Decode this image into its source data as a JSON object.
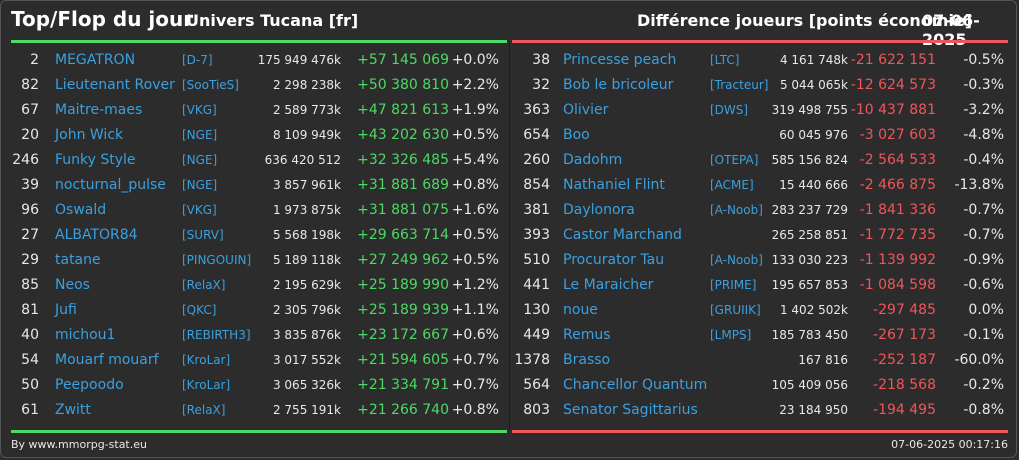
{
  "header": {
    "title": "Top/Flop du jour",
    "universe": "Univers Tucana [fr]",
    "metric": "Différence joueurs [points économie]",
    "date": "07-06-2025"
  },
  "colors": {
    "gain": "#4cd964",
    "loss": "#f0555a",
    "name": "#3aa0e0",
    "background": "#2c2c2c"
  },
  "top": [
    {
      "rank": "2",
      "name": "MEGATRON",
      "ally": "[D-7]",
      "points": "175 949 476k",
      "delta": "+57 145 069",
      "pct": "+0.0%"
    },
    {
      "rank": "82",
      "name": "Lieutenant Rover",
      "ally": "[SooTieS]",
      "points": "2 298 238k",
      "delta": "+50 380 810",
      "pct": "+2.2%"
    },
    {
      "rank": "67",
      "name": "Maitre-maes",
      "ally": "[VKG]",
      "points": "2 589 773k",
      "delta": "+47 821 613",
      "pct": "+1.9%"
    },
    {
      "rank": "20",
      "name": "John Wick",
      "ally": "[NGE]",
      "points": "8 109 949k",
      "delta": "+43 202 630",
      "pct": "+0.5%"
    },
    {
      "rank": "246",
      "name": "Funky Style",
      "ally": "[NGE]",
      "points": "636 420 512",
      "delta": "+32 326 485",
      "pct": "+5.4%"
    },
    {
      "rank": "39",
      "name": "nocturnal_pulse",
      "ally": "[NGE]",
      "points": "3 857 961k",
      "delta": "+31 881 689",
      "pct": "+0.8%"
    },
    {
      "rank": "96",
      "name": "Oswald",
      "ally": "[VKG]",
      "points": "1 973 875k",
      "delta": "+31 881 075",
      "pct": "+1.6%"
    },
    {
      "rank": "27",
      "name": "ALBATOR84",
      "ally": "[SURV]",
      "points": "5 568 198k",
      "delta": "+29 663 714",
      "pct": "+0.5%"
    },
    {
      "rank": "29",
      "name": "tatane",
      "ally": "[PINGOUIN]",
      "points": "5 189 118k",
      "delta": "+27 249 962",
      "pct": "+0.5%"
    },
    {
      "rank": "85",
      "name": "Neos",
      "ally": "[RelaX]",
      "points": "2 195 629k",
      "delta": "+25 189 990",
      "pct": "+1.2%"
    },
    {
      "rank": "81",
      "name": "Jufi",
      "ally": "[QKC]",
      "points": "2 305 796k",
      "delta": "+25 189 939",
      "pct": "+1.1%"
    },
    {
      "rank": "40",
      "name": "michou1",
      "ally": "[REBIRTH3]",
      "points": "3 835 876k",
      "delta": "+23 172 667",
      "pct": "+0.6%"
    },
    {
      "rank": "54",
      "name": "Mouarf mouarf",
      "ally": "[KroLar]",
      "points": "3 017 552k",
      "delta": "+21 594 605",
      "pct": "+0.7%"
    },
    {
      "rank": "50",
      "name": "Peepoodo",
      "ally": "[KroLar]",
      "points": "3 065 326k",
      "delta": "+21 334 791",
      "pct": "+0.7%"
    },
    {
      "rank": "61",
      "name": "Zwitt",
      "ally": "[RelaX]",
      "points": "2 755 191k",
      "delta": "+21 266 740",
      "pct": "+0.8%"
    }
  ],
  "flop": [
    {
      "rank": "38",
      "name": "Princesse peach",
      "ally": "[LTC]",
      "points": "4 161 748k",
      "delta": "-21 622 151",
      "pct": "-0.5%"
    },
    {
      "rank": "32",
      "name": "Bob le bricoleur",
      "ally": "[Tracteur]",
      "points": "5 044 065k",
      "delta": "-12 624 573",
      "pct": "-0.3%"
    },
    {
      "rank": "363",
      "name": "Olivier",
      "ally": "[DWS]",
      "points": "319 498 755",
      "delta": "-10 437 881",
      "pct": "-3.2%"
    },
    {
      "rank": "654",
      "name": "Boo",
      "ally": "",
      "points": "60 045 976",
      "delta": "-3 027 603",
      "pct": "-4.8%"
    },
    {
      "rank": "260",
      "name": "Dadohm",
      "ally": "[OTEPA]",
      "points": "585 156 824",
      "delta": "-2 564 533",
      "pct": "-0.4%"
    },
    {
      "rank": "854",
      "name": "Nathaniel Flint",
      "ally": "[ACME]",
      "points": "15 440 666",
      "delta": "-2 466 875",
      "pct": "-13.8%"
    },
    {
      "rank": "381",
      "name": "Daylonora",
      "ally": "[A-Noob]",
      "points": "283 237 729",
      "delta": "-1 841 336",
      "pct": "-0.7%"
    },
    {
      "rank": "393",
      "name": "Castor Marchand",
      "ally": "",
      "points": "265 258 851",
      "delta": "-1 772 735",
      "pct": "-0.7%"
    },
    {
      "rank": "510",
      "name": "Procurator Tau",
      "ally": "[A-Noob]",
      "points": "133 030 223",
      "delta": "-1 139 992",
      "pct": "-0.9%"
    },
    {
      "rank": "441",
      "name": "Le Maraicher",
      "ally": "[PRIME]",
      "points": "195 657 853",
      "delta": "-1 084 598",
      "pct": "-0.6%"
    },
    {
      "rank": "130",
      "name": "noue",
      "ally": "[GRUIIK]",
      "points": "1 402 502k",
      "delta": "-297 485",
      "pct": "0.0%"
    },
    {
      "rank": "449",
      "name": "Remus",
      "ally": "[LMPS]",
      "points": "185 783 450",
      "delta": "-267 173",
      "pct": "-0.1%"
    },
    {
      "rank": "1378",
      "name": "Brasso",
      "ally": "",
      "points": "167 816",
      "delta": "-252 187",
      "pct": "-60.0%"
    },
    {
      "rank": "564",
      "name": "Chancellor Quantum",
      "ally": "",
      "points": "105 409 056",
      "delta": "-218 568",
      "pct": "-0.2%"
    },
    {
      "rank": "803",
      "name": "Senator Sagittarius",
      "ally": "",
      "points": "23 184 950",
      "delta": "-194 495",
      "pct": "-0.8%"
    }
  ],
  "footer": {
    "source": "By www.mmorpg-stat.eu",
    "timestamp": "07-06-2025 00:17:16"
  }
}
